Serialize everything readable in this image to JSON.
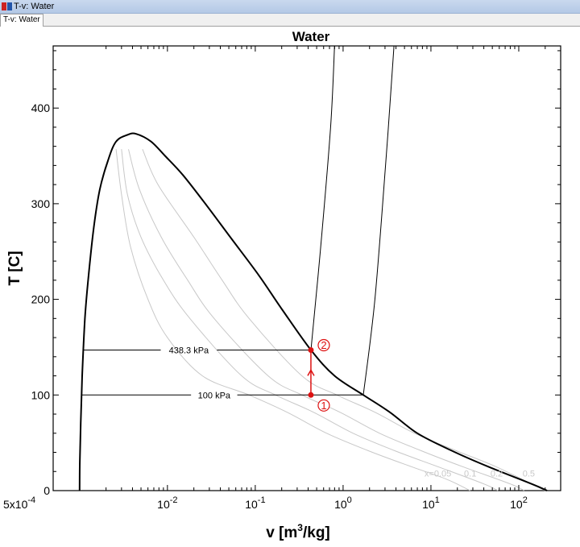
{
  "window": {
    "title": "T-v: Water",
    "tab_label": "T-v: Water"
  },
  "colors": {
    "state": "#dd1111",
    "dome": "#000000",
    "quality": "#c8c8c8",
    "isobar": "#000000"
  },
  "chart_data": {
    "type": "line",
    "title": "Water",
    "xlabel_main": "v [m",
    "xlabel_sup": "3",
    "xlabel_tail": "/kg]",
    "ylabel": "T [C]",
    "x_scale": "log",
    "xlim": [
      0.0005,
      300
    ],
    "ylim": [
      0,
      465
    ],
    "yticks": [
      {
        "value": 0,
        "label": "0"
      },
      {
        "value": 100,
        "label": "100"
      },
      {
        "value": 200,
        "label": "200"
      },
      {
        "value": 300,
        "label": "300"
      },
      {
        "value": 400,
        "label": "400"
      }
    ],
    "xticks": [
      {
        "value": 0.0005,
        "base": "5x10",
        "exp": "-4"
      },
      {
        "value": 0.01,
        "base": "10",
        "exp": "-2"
      },
      {
        "value": 0.1,
        "base": "10",
        "exp": "-1"
      },
      {
        "value": 1,
        "base": "10",
        "exp": "0"
      },
      {
        "value": 10,
        "base": "10",
        "exp": "1"
      },
      {
        "value": 100,
        "base": "10",
        "exp": "2"
      }
    ],
    "saturation_dome": [
      [
        0.001,
        0
      ],
      [
        0.001005,
        30
      ],
      [
        0.00103,
        70
      ],
      [
        0.00107,
        120
      ],
      [
        0.00115,
        180
      ],
      [
        0.00125,
        220
      ],
      [
        0.00145,
        275
      ],
      [
        0.0017,
        315
      ],
      [
        0.0021,
        345
      ],
      [
        0.0026,
        365
      ],
      [
        0.0035,
        372
      ],
      [
        0.0044,
        373
      ],
      [
        0.0065,
        365
      ],
      [
        0.0094,
        350
      ],
      [
        0.015,
        330
      ],
      [
        0.027,
        300
      ],
      [
        0.052,
        265
      ],
      [
        0.11,
        225
      ],
      [
        0.2,
        190
      ],
      [
        0.43,
        147
      ],
      [
        0.8,
        120
      ],
      [
        1.7,
        100
      ],
      [
        3.4,
        82
      ],
      [
        7,
        60
      ],
      [
        17,
        42
      ],
      [
        45,
        25
      ],
      [
        140,
        7
      ],
      [
        210,
        0
      ]
    ],
    "quality_lines": [
      {
        "label": "x=0.05",
        "points": [
          [
            0.0026,
            357
          ],
          [
            0.003,
            310
          ],
          [
            0.0038,
            255
          ],
          [
            0.006,
            200
          ],
          [
            0.01,
            160
          ],
          [
            0.025,
            120
          ],
          [
            0.085,
            100
          ],
          [
            0.23,
            82
          ],
          [
            0.65,
            60
          ],
          [
            1.9,
            42
          ],
          [
            6,
            25
          ],
          [
            15,
            12
          ],
          [
            28,
            0
          ]
        ]
      },
      {
        "label": "0.1",
        "points": [
          [
            0.003,
            357
          ],
          [
            0.0035,
            310
          ],
          [
            0.005,
            265
          ],
          [
            0.009,
            220
          ],
          [
            0.018,
            180
          ],
          [
            0.07,
            120
          ],
          [
            0.17,
            100
          ],
          [
            0.46,
            82
          ],
          [
            1.3,
            60
          ],
          [
            3.8,
            42
          ],
          [
            12,
            25
          ],
          [
            40,
            7
          ],
          [
            58,
            0
          ]
        ]
      },
      {
        "label": "0.2",
        "points": [
          [
            0.0036,
            357
          ],
          [
            0.0048,
            315
          ],
          [
            0.0085,
            265
          ],
          [
            0.017,
            220
          ],
          [
            0.034,
            180
          ],
          [
            0.14,
            120
          ],
          [
            0.34,
            100
          ],
          [
            0.92,
            82
          ],
          [
            2.6,
            60
          ],
          [
            7.6,
            42
          ],
          [
            23,
            25
          ],
          [
            80,
            7
          ],
          [
            115,
            0
          ]
        ]
      },
      {
        "label": "0.5",
        "points": [
          [
            0.0052,
            357
          ],
          [
            0.0078,
            320
          ],
          [
            0.02,
            265
          ],
          [
            0.042,
            220
          ],
          [
            0.085,
            180
          ],
          [
            0.34,
            120
          ],
          [
            0.85,
            100
          ],
          [
            2.3,
            82
          ],
          [
            6.5,
            60
          ],
          [
            19,
            42
          ],
          [
            55,
            25
          ],
          [
            200,
            0
          ]
        ]
      }
    ],
    "quality_labels": [
      {
        "text": "x=0.05",
        "v": 12,
        "T": 18
      },
      {
        "text": "0.1",
        "v": 28,
        "T": 18
      },
      {
        "text": "0.2",
        "v": 56,
        "T": 18
      },
      {
        "text": "0.5",
        "v": 130,
        "T": 18
      }
    ],
    "isobars": [
      {
        "label": "438.3 kPa",
        "T": 147,
        "v_liquid": 0.00109,
        "v_vapor": 0.43,
        "superheat": [
          [
            0.43,
            147
          ],
          [
            0.55,
            250
          ],
          [
            0.72,
            380
          ],
          [
            0.8,
            465
          ]
        ]
      },
      {
        "label": "100 kPa",
        "T": 100,
        "v_liquid": 0.00104,
        "v_vapor": 1.7,
        "superheat": [
          [
            1.7,
            100
          ],
          [
            2.3,
            200
          ],
          [
            3.1,
            350
          ],
          [
            3.8,
            465
          ]
        ]
      }
    ],
    "states": [
      {
        "id": "1",
        "v": 0.43,
        "T": 100
      },
      {
        "id": "2",
        "v": 0.43,
        "T": 147
      }
    ],
    "process": {
      "from": "1",
      "to": "2",
      "arrow": "up"
    },
    "grid": false
  }
}
